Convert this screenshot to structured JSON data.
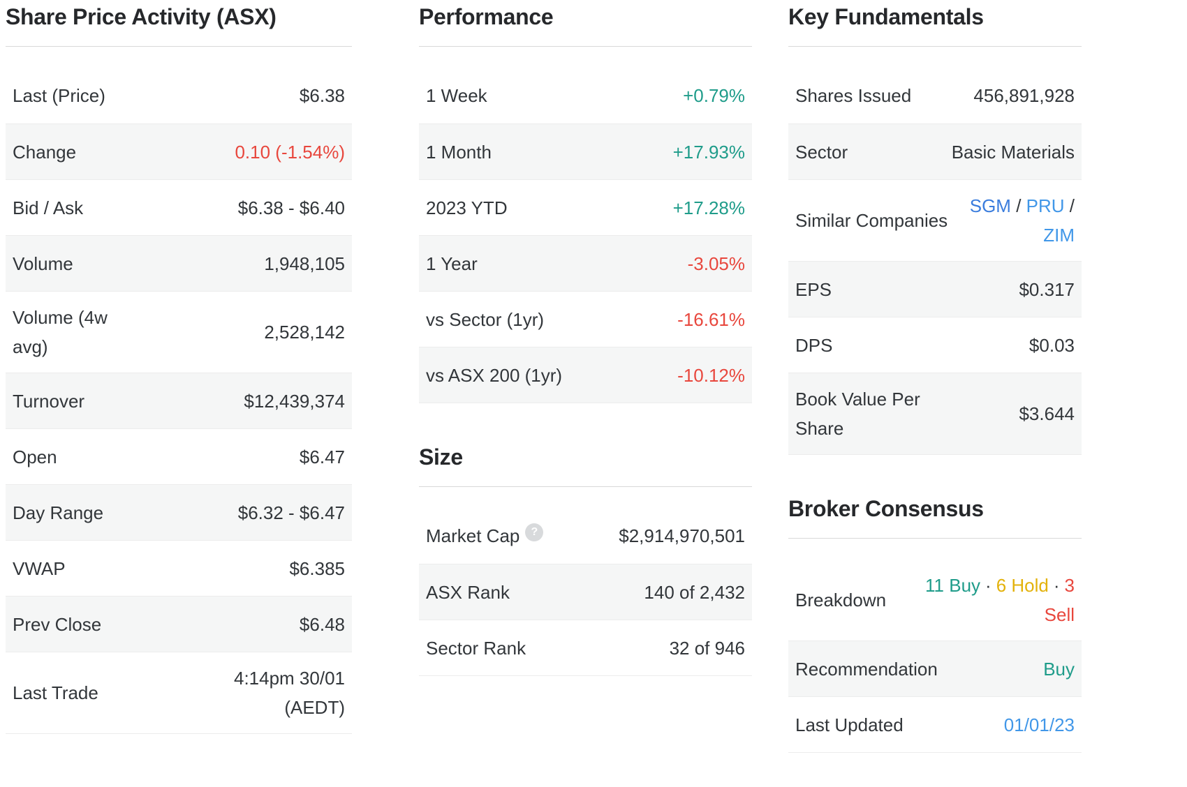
{
  "colors": {
    "heading_text": "#26282b",
    "body_text": "#32363a",
    "positive": "#1f9c8a",
    "negative": "#e8473d",
    "hold": "#e3b20b",
    "link": "#4197e8",
    "link_dark": "#3b7ddd",
    "row_alt_bg": "#f5f6f6",
    "row_border": "#ececec",
    "heading_rule": "#d8d8d8",
    "help_icon_bg": "#d8dadc"
  },
  "share_price_activity": {
    "title": "Share Price Activity (ASX)",
    "rows": [
      {
        "label": "Last (Price)",
        "value": "$6.38"
      },
      {
        "label": "Change",
        "value": "0.10 (-1.54%)",
        "direction": "negative"
      },
      {
        "label": "Bid / Ask",
        "value": "$6.38 - $6.40"
      },
      {
        "label": "Volume",
        "value": "1,948,105"
      },
      {
        "label": "Volume (4w avg)",
        "value": "2,528,142"
      },
      {
        "label": "Turnover",
        "value": "$12,439,374"
      },
      {
        "label": "Open",
        "value": "$6.47"
      },
      {
        "label": "Day Range",
        "value": "$6.32 - $6.47"
      },
      {
        "label": "VWAP",
        "value": "$6.385"
      },
      {
        "label": "Prev Close",
        "value": "$6.48"
      },
      {
        "label": "Last Trade",
        "value": "4:14pm 30/01 (AEDT)"
      }
    ]
  },
  "performance": {
    "title": "Performance",
    "rows": [
      {
        "label": "1 Week",
        "value": "+0.79%",
        "direction": "positive"
      },
      {
        "label": "1 Month",
        "value": "+17.93%",
        "direction": "positive"
      },
      {
        "label": "2023 YTD",
        "value": "+17.28%",
        "direction": "positive"
      },
      {
        "label": "1 Year",
        "value": "-3.05%",
        "direction": "negative"
      },
      {
        "label": "vs Sector (1yr)",
        "value": "-16.61%",
        "direction": "negative"
      },
      {
        "label": "vs ASX 200 (1yr)",
        "value": "-10.12%",
        "direction": "negative"
      }
    ]
  },
  "size": {
    "title": "Size",
    "rows": [
      {
        "label": "Market Cap",
        "help_icon": "question-mark-icon",
        "help_glyph": "?",
        "value": "$2,914,970,501"
      },
      {
        "label": "ASX Rank",
        "value": "140 of 2,432"
      },
      {
        "label": "Sector Rank",
        "value": "32 of 946"
      }
    ]
  },
  "key_fundamentals": {
    "title": "Key Fundamentals",
    "rows": [
      {
        "label": "Shares Issued",
        "value": "456,891,928"
      },
      {
        "label": "Sector",
        "value": "Basic Materials"
      },
      {
        "label": "Similar Companies",
        "links": [
          "SGM",
          "PRU",
          "ZIM"
        ],
        "separator": " / "
      },
      {
        "label": "EPS",
        "value": "$0.317"
      },
      {
        "label": "DPS",
        "value": "$0.03"
      },
      {
        "label": "Book Value Per Share",
        "value": "$3.644"
      }
    ]
  },
  "broker_consensus": {
    "title": "Broker Consensus",
    "rows": [
      {
        "label": "Breakdown",
        "value_parts": {
          "buy": "11 Buy",
          "hold": "6 Hold",
          "sell": "3 Sell",
          "separator": "·"
        }
      },
      {
        "label": "Recommendation",
        "value": "Buy",
        "direction": "positive"
      },
      {
        "label": "Last Updated",
        "value": "01/01/23",
        "style": "link"
      }
    ]
  }
}
